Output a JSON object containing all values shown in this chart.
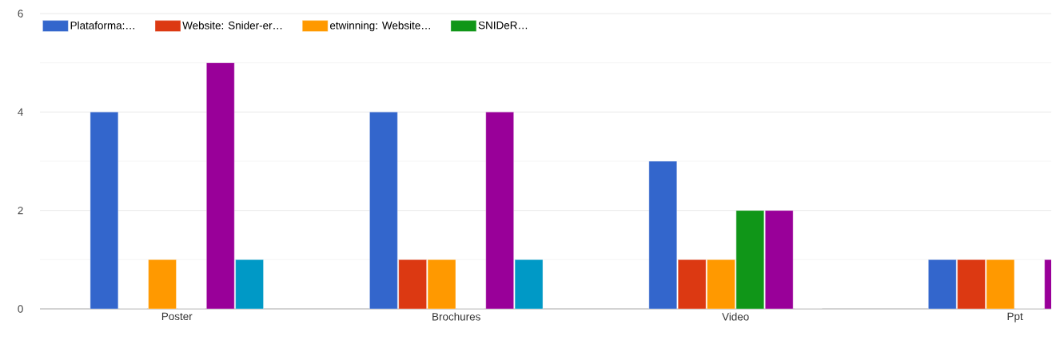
{
  "chart_data": {
    "type": "bar",
    "categories": [
      "Poster",
      "Brochures",
      "Video",
      "Ppt"
    ],
    "series": [
      {
        "name": "Plataforma:…",
        "color": "#3366cc",
        "values": [
          4,
          4,
          3,
          1
        ]
      },
      {
        "name": "Website: Snider-er…",
        "color": "#dc3912",
        "values": [
          0,
          1,
          1,
          1
        ]
      },
      {
        "name": "etwinning: Website…",
        "color": "#ff9900",
        "values": [
          1,
          1,
          1,
          1
        ]
      },
      {
        "name": "SNIDeR…",
        "color": "#109618",
        "values": [
          0,
          0,
          2,
          0
        ]
      },
      {
        "color": "#990099",
        "values": [
          5,
          4,
          2,
          1
        ]
      },
      {
        "color": "#0099c6",
        "values": [
          1,
          1,
          0,
          null
        ]
      }
    ],
    "ylim": [
      0,
      6
    ],
    "yticks": [
      0,
      2,
      4,
      6
    ],
    "grid": true,
    "legend": "top"
  }
}
